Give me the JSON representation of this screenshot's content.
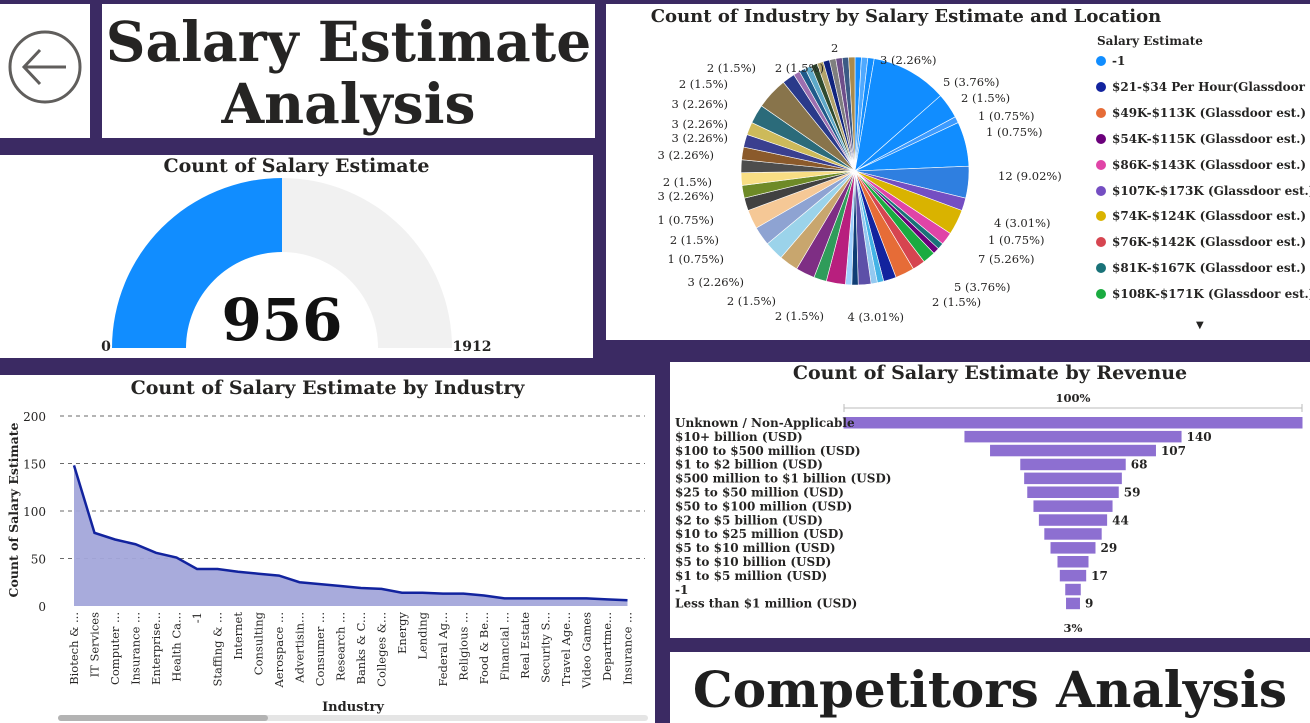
{
  "header": {
    "title_line1": "Salary Estimate",
    "title_line2": "Analysis",
    "back_icon": "arrow-left-circle-icon"
  },
  "gauge": {
    "title": "Count of Salary Estimate",
    "value": 956,
    "value_label": "956",
    "min_label": "0",
    "max_label": "1912",
    "min": 0,
    "max": 1912,
    "fill_color": "#118DFF",
    "track_color": "#F1F1F1"
  },
  "pie": {
    "title": "Count of Industry by Salary Estimate and Location",
    "legend_title": "Salary Estimate",
    "legend": [
      {
        "label": "-1",
        "color": "#118DFF"
      },
      {
        "label": "$21-$34 Per Hour(Glassdoor ...",
        "color": "#12239E"
      },
      {
        "label": "$49K-$113K (Glassdoor est.)",
        "color": "#E66C37"
      },
      {
        "label": "$54K-$115K (Glassdoor est.)",
        "color": "#6B007B"
      },
      {
        "label": "$86K-$143K (Glassdoor est.)",
        "color": "#E044A7"
      },
      {
        "label": "$107K-$173K (Glassdoor est.)",
        "color": "#744EC2"
      },
      {
        "label": "$74K-$124K (Glassdoor est.)",
        "color": "#D9B300"
      },
      {
        "label": "$76K-$142K (Glassdoor est.)",
        "color": "#D64550"
      },
      {
        "label": "$81K-$167K (Glassdoor est.)",
        "color": "#197278"
      },
      {
        "label": "$108K-$171K (Glassdoor est.)",
        "color": "#1AAB40"
      }
    ],
    "more_icon": "triangle-down-icon",
    "slice_labels": [
      {
        "text": "2",
        "side": "top"
      },
      {
        "text": "3 (2.26%)",
        "side": "right"
      },
      {
        "text": "5 (3.76%)",
        "side": "right"
      },
      {
        "text": "2 (1.5%)",
        "side": "right"
      },
      {
        "text": "1 (0.75%)",
        "side": "right"
      },
      {
        "text": "1 (0.75%)",
        "side": "right"
      },
      {
        "text": "12 (9.02%)",
        "side": "right"
      },
      {
        "text": "4 (3.01%)",
        "side": "right"
      },
      {
        "text": "1 (0.75%)",
        "side": "right"
      },
      {
        "text": "7 (5.26%)",
        "side": "right"
      },
      {
        "text": "5 (3.76%)",
        "side": "right"
      },
      {
        "text": "2 (1.5%)",
        "side": "right"
      },
      {
        "text": "4 (3.01%)",
        "side": "right"
      },
      {
        "text": "2 (1.5%)",
        "side": "left"
      },
      {
        "text": "2 (1.5%)",
        "side": "left"
      },
      {
        "text": "3 (2.26%)",
        "side": "left"
      },
      {
        "text": "1 (0.75%)",
        "side": "left"
      },
      {
        "text": "2 (1.5%)",
        "side": "left"
      },
      {
        "text": "1 (0.75%)",
        "side": "left"
      },
      {
        "text": "3 (2.26%)",
        "side": "left"
      },
      {
        "text": "2 (1.5%)",
        "side": "left"
      },
      {
        "text": "3 (2.26%)",
        "side": "left"
      },
      {
        "text": "3 (2.26%)",
        "side": "left"
      },
      {
        "text": "3 (2.26%)",
        "side": "left"
      },
      {
        "text": "3 (2.26%)",
        "side": "left"
      },
      {
        "text": "2 (1.5%)",
        "side": "left"
      },
      {
        "text": "2 (1.5%)",
        "side": "left"
      },
      {
        "text": "2 (1.5%)",
        "side": "top"
      }
    ]
  },
  "line_chart": {
    "xlabel": "Industry",
    "ylabel": "Count of Salary Estimate",
    "line_color": "#12239E",
    "area_color": "#A3A6DA"
  },
  "funnel_chart": {
    "top_pct": "100%",
    "bottom_pct": "3%",
    "bar_color": "#8D6FD1"
  },
  "competitors": {
    "title": "Competitors Analysis"
  },
  "chart_data": [
    {
      "type": "area",
      "title": "Count of Salary Estimate by Industry",
      "xlabel": "Industry",
      "ylabel": "Count of Salary Estimate",
      "ylim": [
        0,
        200
      ],
      "yticks": [
        0,
        50,
        100,
        150,
        200
      ],
      "grid": true,
      "categories": [
        "Biotech & ...",
        "IT Services",
        "Computer ...",
        "Insurance ...",
        "Enterprise...",
        "Health Ca...",
        "-1",
        "Staffing & ...",
        "Internet",
        "Consulting",
        "Aerospace ...",
        "Advertisin...",
        "Consumer ...",
        "Research ...",
        "Banks & C...",
        "Colleges &...",
        "Energy",
        "Lending",
        "Federal Ag...",
        "Religious ...",
        "Food & Be...",
        "Financial ...",
        "Real Estate",
        "Security S...",
        "Travel Age...",
        "Video Games",
        "Departme...",
        "Insurance ..."
      ],
      "values": [
        148,
        77,
        70,
        65,
        56,
        51,
        39,
        39,
        36,
        34,
        32,
        25,
        23,
        21,
        19,
        18,
        14,
        14,
        13,
        13,
        11,
        8,
        8,
        8,
        8,
        8,
        7,
        6
      ]
    },
    {
      "type": "bar",
      "title": "Count of Salary Estimate by Revenue",
      "categories": [
        "Unknown / Non-Applicable",
        "$10+ billion (USD)",
        "$100 to $500 million (USD)",
        "$1 to $2 billion (USD)",
        "$500 million to $1 billion (USD)",
        "$25 to $50 million (USD)",
        "$50 to $100 million (USD)",
        "$2 to $5 billion (USD)",
        "$10 to $25 million (USD)",
        "$5 to $10 million (USD)",
        "$5 to $10 billion (USD)",
        "$1 to $5 million (USD)",
        "-1",
        "Less than $1 million (USD)"
      ],
      "values": [
        296,
        140,
        107,
        68,
        63,
        59,
        51,
        44,
        37,
        29,
        20,
        17,
        10,
        9
      ],
      "value_labels": [
        "",
        "140",
        "107",
        "68",
        "",
        "59",
        "",
        "44",
        "",
        "29",
        "",
        "17",
        "",
        "9"
      ]
    },
    {
      "type": "pie",
      "title": "Count of Industry by Salary Estimate and Location",
      "values": [
        1,
        1,
        1,
        12,
        4,
        1,
        7,
        5,
        2,
        4,
        2,
        1,
        1,
        2,
        2,
        3,
        2,
        1,
        1,
        2,
        1,
        1,
        3,
        2,
        3,
        3,
        3,
        3,
        3,
        2,
        2,
        2,
        2,
        2,
        2,
        2,
        3,
        5,
        2,
        1,
        1,
        1,
        1,
        1,
        1,
        1,
        1,
        1,
        1
      ]
    }
  ]
}
